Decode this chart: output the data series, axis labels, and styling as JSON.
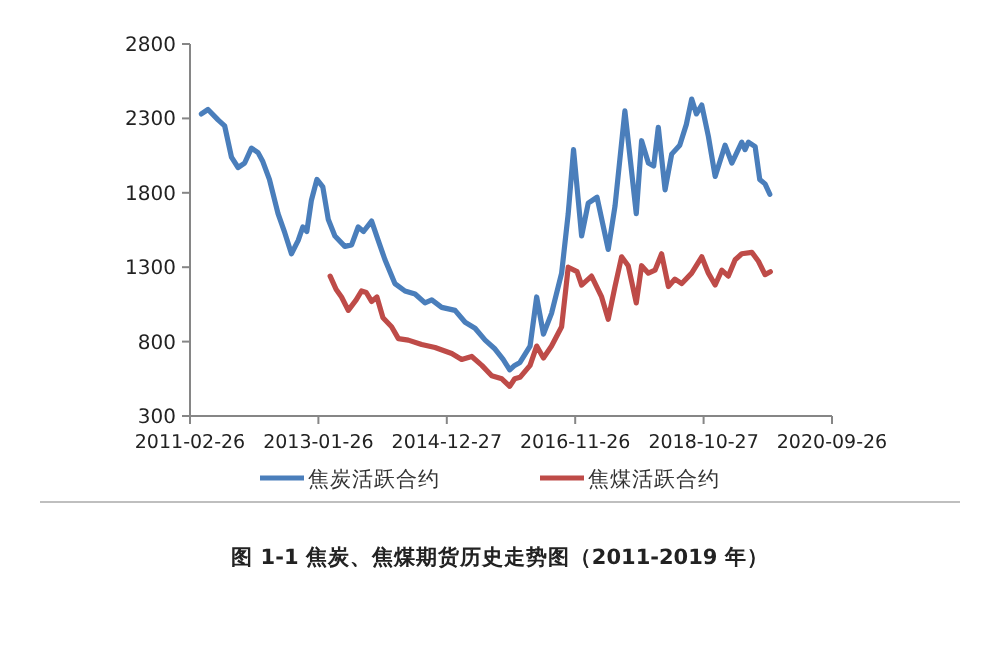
{
  "chart_data": {
    "type": "line",
    "title": "图 1-1   焦炭、焦煤期货历史走势图（2011-2019 年）",
    "xlim": [
      "2011-02-26",
      "2020-09-26"
    ],
    "xticks": [
      "2011-02-26",
      "2013-01-26",
      "2014-12-27",
      "2016-11-26",
      "2018-10-27",
      "2020-09-26"
    ],
    "ylim": [
      300,
      2800
    ],
    "yticks": [
      300,
      800,
      1300,
      1800,
      2300,
      2800
    ],
    "grid": false,
    "legend": "bottom",
    "marker": "none",
    "line_style": "solid",
    "series": [
      {
        "name": "焦炭活跃合约",
        "color": "#4a7ebb",
        "x": [
          "2011-04-29",
          "2011-06-04",
          "2011-07-29",
          "2011-09-03",
          "2011-10-10",
          "2011-11-15",
          "2011-12-21",
          "2012-01-27",
          "2012-03-03",
          "2012-03-29",
          "2012-05-04",
          "2012-06-20",
          "2012-07-27",
          "2012-09-01",
          "2012-10-08",
          "2012-11-02",
          "2012-11-24",
          "2012-12-19",
          "2013-01-18",
          "2013-02-19",
          "2013-03-21",
          "2013-04-26",
          "2013-06-19",
          "2013-07-26",
          "2013-08-31",
          "2013-09-29",
          "2013-11-12",
          "2013-12-18",
          "2014-01-24",
          "2014-03-19",
          "2014-05-13",
          "2014-07-07",
          "2014-08-30",
          "2014-10-06",
          "2014-11-29",
          "2015-02-10",
          "2015-04-06",
          "2015-05-30",
          "2015-07-24",
          "2015-09-16",
          "2015-10-30",
          "2015-12-05",
          "2016-01-01",
          "2016-01-30",
          "2016-03-25",
          "2016-04-30",
          "2016-06-06",
          "2016-07-20",
          "2016-09-13",
          "2016-10-19",
          "2016-11-17",
          "2016-12-31",
          "2017-02-05",
          "2017-03-25",
          "2017-05-25",
          "2017-07-01",
          "2017-08-24",
          "2017-10-25",
          "2017-11-23",
          "2017-12-30",
          "2018-01-28",
          "2018-02-22",
          "2018-03-31",
          "2018-05-06",
          "2018-06-19",
          "2018-07-25",
          "2018-08-23",
          "2018-09-18",
          "2018-10-17",
          "2018-11-22",
          "2018-12-29",
          "2019-02-21",
          "2019-03-30",
          "2019-05-23",
          "2019-06-10",
          "2019-06-28",
          "2019-08-04",
          "2019-08-29",
          "2019-09-27",
          "2019-10-23"
        ],
        "values": [
          2330,
          2360,
          2290,
          2250,
          2040,
          1970,
          2000,
          2100,
          2070,
          2010,
          1890,
          1660,
          1530,
          1390,
          1480,
          1570,
          1540,
          1750,
          1890,
          1840,
          1620,
          1510,
          1440,
          1450,
          1570,
          1540,
          1610,
          1480,
          1350,
          1190,
          1140,
          1120,
          1060,
          1080,
          1030,
          1010,
          930,
          890,
          810,
          750,
          680,
          610,
          640,
          660,
          770,
          1100,
          850,
          990,
          1260,
          1660,
          2090,
          1510,
          1730,
          1770,
          1420,
          1710,
          2350,
          1660,
          2150,
          2000,
          1980,
          2240,
          1820,
          2060,
          2120,
          2260,
          2430,
          2330,
          2390,
          2180,
          1910,
          2120,
          2000,
          2140,
          2090,
          2140,
          2110,
          1890,
          1860,
          1790
        ]
      },
      {
        "name": "焦煤活跃合约",
        "color": "#be4b48",
        "x": [
          "2013-03-31",
          "2013-05-03",
          "2013-06-01",
          "2013-07-08",
          "2013-08-20",
          "2013-09-18",
          "2013-10-14",
          "2013-11-12",
          "2013-12-11",
          "2014-01-13",
          "2014-03-01",
          "2014-04-07",
          "2014-05-31",
          "2014-08-12",
          "2014-10-24",
          "2015-01-23",
          "2015-03-18",
          "2015-05-12",
          "2015-07-06",
          "2015-08-29",
          "2015-10-23",
          "2015-12-05",
          "2016-01-01",
          "2016-01-30",
          "2016-03-25",
          "2016-04-30",
          "2016-06-06",
          "2016-07-20",
          "2016-09-13",
          "2016-10-19",
          "2016-12-06",
          "2016-12-31",
          "2017-02-23",
          "2017-04-19",
          "2017-05-25",
          "2017-07-01",
          "2017-08-06",
          "2017-09-11",
          "2017-10-25",
          "2017-11-23",
          "2017-12-30",
          "2018-02-04",
          "2018-03-12",
          "2018-04-18",
          "2018-05-24",
          "2018-06-30",
          "2018-08-23",
          "2018-10-17",
          "2018-11-22",
          "2018-12-29",
          "2019-02-03",
          "2019-03-11",
          "2019-04-17",
          "2019-05-23",
          "2019-07-17",
          "2019-08-22",
          "2019-09-27",
          "2019-10-26"
        ],
        "values": [
          1240,
          1150,
          1100,
          1010,
          1080,
          1140,
          1130,
          1070,
          1100,
          960,
          900,
          820,
          810,
          780,
          760,
          720,
          680,
          700,
          640,
          570,
          550,
          500,
          550,
          560,
          640,
          770,
          690,
          770,
          900,
          1300,
          1270,
          1180,
          1240,
          1100,
          950,
          1170,
          1370,
          1310,
          1060,
          1310,
          1260,
          1280,
          1390,
          1170,
          1220,
          1190,
          1260,
          1370,
          1260,
          1180,
          1280,
          1240,
          1350,
          1390,
          1400,
          1340,
          1250,
          1270
        ]
      }
    ]
  }
}
